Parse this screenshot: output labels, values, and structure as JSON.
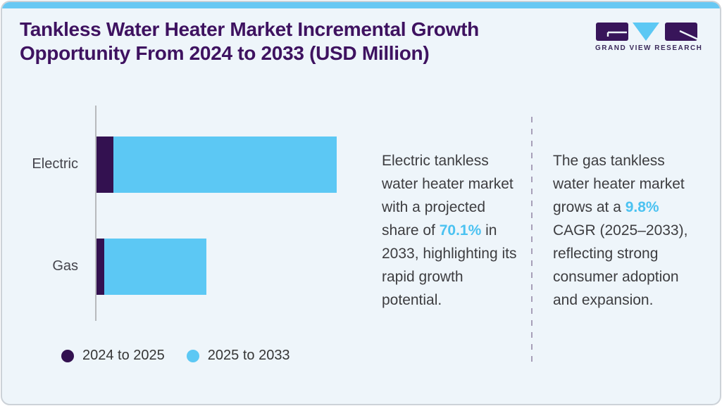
{
  "header": {
    "title": "Tankless Water Heater Market Incremental Growth Opportunity From 2024 to 2033 (USD Million)"
  },
  "logo": {
    "name": "Grand View Research",
    "wordmark": "GRAND VIEW RESEARCH"
  },
  "chart_data": {
    "type": "bar",
    "orientation": "horizontal",
    "stacked": true,
    "title": "Tankless Water Heater Market Incremental Growth Opportunity From 2024 to 2033 (USD Million)",
    "categories": [
      "Electric",
      "Gas"
    ],
    "series": [
      {
        "name": "2024 to 2025",
        "color": "#331150",
        "values": [
          24,
          11
        ]
      },
      {
        "name": "2025 to 2033",
        "color": "#5cc8f4",
        "values": [
          317,
          145
        ]
      }
    ],
    "units": "relative bar lengths in px; axis has no numeric tick labels (values in USD Million not shown)",
    "xlabel": "",
    "ylabel": "",
    "grid": false,
    "legend_position": "bottom"
  },
  "callouts": {
    "electric": {
      "pre": "Electric tankless water heater market with a projected share of ",
      "highlight": "70.1%",
      "post": " in 2033, highlighting its rapid growth potential."
    },
    "gas": {
      "pre": "The gas tankless water heater market grows at a ",
      "highlight": "9.8%",
      "post": " CAGR (2025–2033), reflecting strong consumer adoption and expansion."
    }
  },
  "colors": {
    "accent_bar": "#68c8f3",
    "card_background": "#eef5fa",
    "title_purple": "#3e1260",
    "dark_series": "#331150",
    "blue_series": "#5cc8f4",
    "highlight_blue": "#4bc2f1",
    "body_text": "#3d3d40"
  }
}
